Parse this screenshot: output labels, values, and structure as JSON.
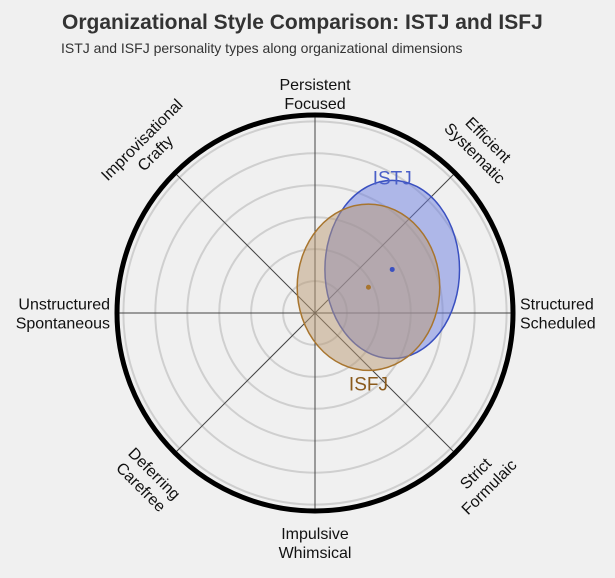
{
  "title": "Organizational Style Comparison: ISTJ and ISFJ",
  "subtitle": "ISTJ and ISFJ personality types along organizational dimensions",
  "chart_data": {
    "type": "radial-ellipse",
    "grid": true,
    "rings": 6,
    "dimensions": [
      {
        "angle_deg": 0,
        "lines": [
          "Structured",
          "Scheduled"
        ]
      },
      {
        "angle_deg": 45,
        "lines": [
          "Efficient",
          "Systematic"
        ]
      },
      {
        "angle_deg": 90,
        "lines": [
          "Persistent",
          "Focused"
        ]
      },
      {
        "angle_deg": 135,
        "lines": [
          "Improvisational",
          "Crafty"
        ]
      },
      {
        "angle_deg": 180,
        "lines": [
          "Unstructured",
          "Spontaneous"
        ]
      },
      {
        "angle_deg": 225,
        "lines": [
          "Deferring",
          "Carefree"
        ]
      },
      {
        "angle_deg": 270,
        "lines": [
          "Impulsive",
          "Whimsical"
        ]
      },
      {
        "angle_deg": 315,
        "lines": [
          "Strict",
          "Formulaic"
        ]
      }
    ],
    "series": [
      {
        "name": "ISTJ",
        "center": [
          0.39,
          0.22
        ],
        "radii": [
          0.34,
          0.45
        ],
        "fill": "#6b7ee0",
        "stroke": "#3a50c0",
        "text_color": "#4a5fc8",
        "label_pos": "top"
      },
      {
        "name": "ISFJ",
        "center": [
          0.27,
          0.13
        ],
        "radii": [
          0.36,
          0.42
        ],
        "fill": "#b99a74",
        "stroke": "#a8752e",
        "text_color": "#8a5a1c",
        "label_pos": "bottom"
      }
    ]
  }
}
